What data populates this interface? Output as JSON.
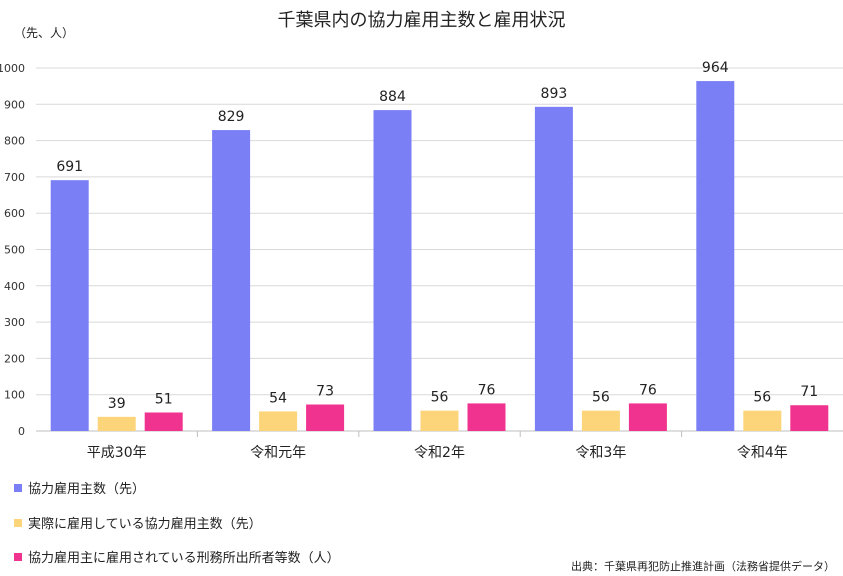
{
  "chart_data": {
    "type": "bar",
    "title": "千葉県内の協力雇用主数と雇用状況",
    "unit_label": "（先、人）",
    "categories": [
      "平成30年",
      "令和元年",
      "令和2年",
      "令和3年",
      "令和4年"
    ],
    "series": [
      {
        "name": "協力雇用主数（先）",
        "color": "#7b7ff6",
        "values": [
          691,
          829,
          884,
          893,
          964
        ]
      },
      {
        "name": "実際に雇用している協力雇用主数（先）",
        "color": "#fcd57a",
        "values": [
          39,
          54,
          56,
          56,
          56
        ]
      },
      {
        "name": "協力雇用主に雇用されている刑務所出所者等数（人）",
        "color": "#f0338f",
        "values": [
          51,
          73,
          76,
          76,
          71
        ]
      }
    ],
    "ylim": [
      0,
      1000
    ],
    "yticks": [
      0,
      100,
      200,
      300,
      400,
      500,
      600,
      700,
      800,
      900,
      1000
    ],
    "grid": true,
    "legend_position": "bottom-left",
    "source": "出典：千葉県再犯防止推進計画（法務省提供データ）"
  }
}
